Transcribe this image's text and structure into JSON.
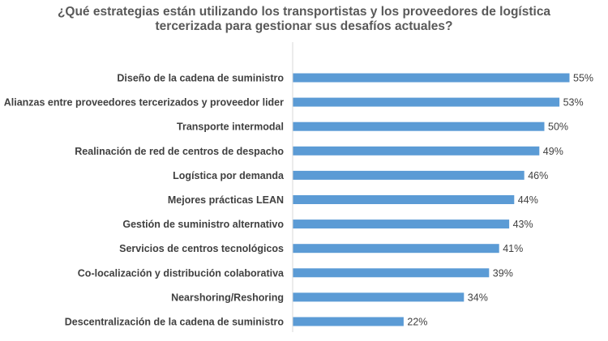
{
  "chart_data": {
    "type": "bar",
    "orientation": "horizontal",
    "title_lines": [
      "¿Qué estrategias están utilizando los transportistas y los proveedores de logística",
      "tercerizada para gestionar sus desafíos actuales?"
    ],
    "categories": [
      "Diseño de la cadena de suministro",
      "Alianzas entre proveedores tercerizados y proveedor lider",
      "Transporte intermodal",
      "Realinación de red de centros de despacho",
      "Logística por demanda",
      "Mejores prácticas LEAN",
      "Gestión de suministro alternativo",
      "Servicios de centros tecnológicos",
      "Co-localización y distribución colaborativa",
      "Nearshoring/Reshoring",
      "Descentralización de la cadena de suministro"
    ],
    "values": [
      55,
      53,
      50,
      49,
      46,
      44,
      43,
      41,
      39,
      34,
      22
    ],
    "value_labels": [
      "55%",
      "53%",
      "50%",
      "49%",
      "46%",
      "44%",
      "43%",
      "41%",
      "39%",
      "34%",
      "22%"
    ],
    "unit": "%",
    "xlim": [
      0,
      60
    ],
    "grid": false,
    "legend": "none",
    "colors": {
      "bar": "#5b9bd5",
      "category_text": "#404040",
      "value_text": "#404040",
      "title": "#595959",
      "axis_line": "#d9d9d9"
    }
  }
}
